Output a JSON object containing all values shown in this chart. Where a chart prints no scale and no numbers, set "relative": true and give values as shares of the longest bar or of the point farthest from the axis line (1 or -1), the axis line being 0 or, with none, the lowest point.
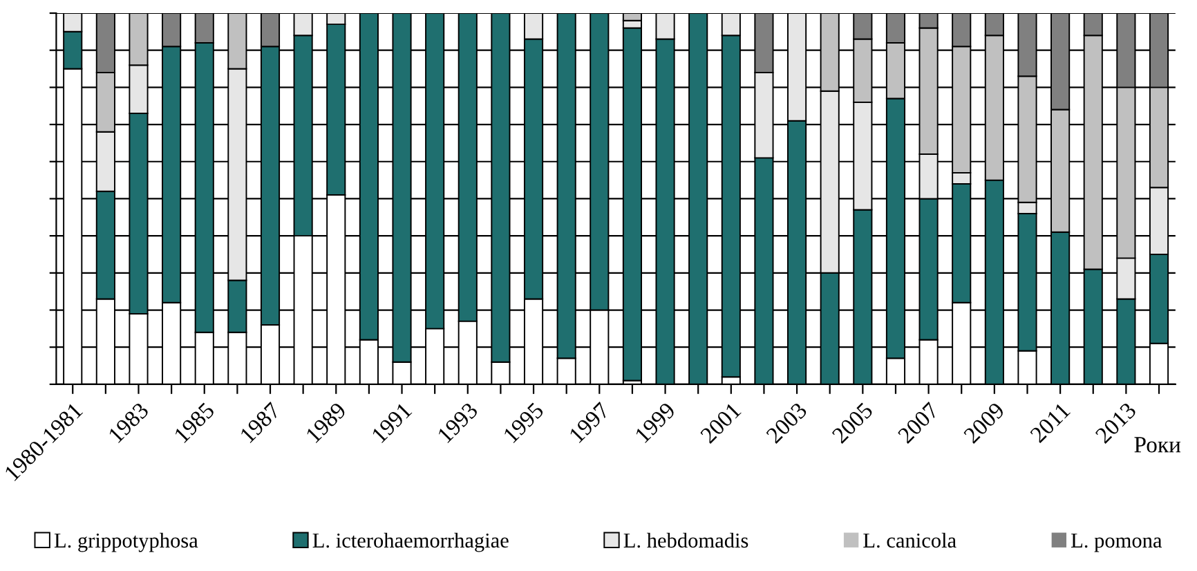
{
  "chart_data": {
    "type": "bar",
    "stacked": true,
    "relative": true,
    "xlabel": "Роки",
    "grid": "y",
    "legend": "bottom",
    "categories": [
      "1980-1981",
      null,
      "1983",
      null,
      "1985",
      null,
      "1987",
      null,
      "1989",
      null,
      "1991",
      null,
      "1993",
      null,
      "1995",
      null,
      "1997",
      null,
      "1999",
      null,
      "2001",
      null,
      "2003",
      null,
      "2005",
      null,
      "2007",
      null,
      "2009",
      null,
      "2011",
      null,
      "2013",
      null
    ],
    "series": [
      {
        "name": "L. grippotyphosa",
        "color": "#ffffff",
        "values": [
          0.85,
          0.23,
          0.19,
          0.22,
          0.14,
          0.14,
          0.16,
          0.4,
          0.51,
          0.12,
          0.06,
          0.15,
          0.17,
          0.06,
          0.23,
          0.07,
          0.2,
          0.01,
          0,
          0,
          0.02,
          0,
          0,
          0,
          0,
          0.07,
          0.12,
          0.22,
          0,
          0.09,
          0,
          0,
          0,
          0.11
        ]
      },
      {
        "name": "L. icterohaemorrhagiae",
        "color": "#1f6f6f",
        "values": [
          0.1,
          0.29,
          0.54,
          0.69,
          0.78,
          0.14,
          0.75,
          0.54,
          0.46,
          0.88,
          0.94,
          0.85,
          0.83,
          0.94,
          0.7,
          0.93,
          0.8,
          0.95,
          0.93,
          1.0,
          0.92,
          0.61,
          0.71,
          0.3,
          0.47,
          0.7,
          0.38,
          0.32,
          0.55,
          0.37,
          0.41,
          0.31,
          0.23,
          0.24
        ]
      },
      {
        "name": "L. hebdomadis",
        "color": "#e6e6e6",
        "values": [
          0.05,
          0.16,
          0.13,
          0,
          0,
          0.57,
          0,
          0.06,
          0.03,
          0,
          0,
          0,
          0,
          0,
          0.07,
          0,
          0,
          0.02,
          0.07,
          0,
          0.06,
          0.23,
          0.29,
          0.49,
          0.29,
          0,
          0.12,
          0.03,
          0,
          0.03,
          0,
          0,
          0.11,
          0.18
        ]
      },
      {
        "name": "L. canicola",
        "color": "#c0c0c0",
        "values": [
          0,
          0.16,
          0.14,
          0,
          0,
          0.15,
          0,
          0,
          0,
          0,
          0,
          0,
          0,
          0,
          0,
          0,
          0,
          0.02,
          0,
          0,
          0,
          0,
          0,
          0.21,
          0.17,
          0.15,
          0.34,
          0.34,
          0.39,
          0.34,
          0.33,
          0.63,
          0.46,
          0.27
        ]
      },
      {
        "name": "L. pomona",
        "color": "#808080",
        "values": [
          0,
          0.16,
          0,
          0.09,
          0.08,
          0,
          0.09,
          0,
          0,
          0,
          0,
          0,
          0,
          0,
          0,
          0,
          0,
          0,
          0,
          0,
          0,
          0.16,
          0,
          0,
          0.07,
          0.08,
          0.04,
          0.09,
          0.06,
          0.17,
          0.26,
          0.06,
          0.2,
          0.2
        ]
      }
    ]
  }
}
